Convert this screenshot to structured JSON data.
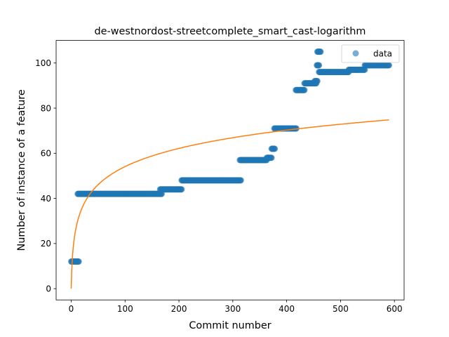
{
  "chart_data": {
    "type": "scatter",
    "title": "de-westnordost-streetcomplete_smart_cast-logarithm",
    "xlabel": "Commit number",
    "ylabel": "Number of instance of a feature",
    "xlim": [
      -28,
      618
    ],
    "ylim": [
      -5,
      110
    ],
    "xticks": [
      0,
      100,
      200,
      300,
      400,
      500,
      600
    ],
    "yticks": [
      0,
      20,
      40,
      60,
      80,
      100
    ],
    "legend": {
      "position": "top-right",
      "entries": [
        "data"
      ]
    },
    "colors": {
      "data": "#1f77b4",
      "fit": "#ff7f0e"
    },
    "grid": false,
    "series": [
      {
        "name": "data",
        "kind": "scatter-steps",
        "segments": [
          {
            "x0": 0,
            "x1": 14,
            "y": 12
          },
          {
            "x0": 12,
            "x1": 168,
            "y": 42
          },
          {
            "x0": 165,
            "x1": 205,
            "y": 44
          },
          {
            "x0": 205,
            "x1": 315,
            "y": 48
          },
          {
            "x0": 313,
            "x1": 363,
            "y": 57
          },
          {
            "x0": 363,
            "x1": 372,
            "y": 58
          },
          {
            "x0": 372,
            "x1": 378,
            "y": 62
          },
          {
            "x0": 377,
            "x1": 418,
            "y": 71
          },
          {
            "x0": 417,
            "x1": 433,
            "y": 88
          },
          {
            "x0": 433,
            "x1": 455,
            "y": 91
          },
          {
            "x0": 452,
            "x1": 457,
            "y": 92
          },
          {
            "x0": 456,
            "x1": 460,
            "y": 99
          },
          {
            "x0": 457,
            "x1": 463,
            "y": 105
          },
          {
            "x0": 460,
            "x1": 515,
            "y": 96
          },
          {
            "x0": 515,
            "x1": 545,
            "y": 97
          },
          {
            "x0": 545,
            "x1": 590,
            "y": 99
          }
        ]
      },
      {
        "name": "",
        "kind": "line",
        "model": "y = a * ln(x + 1)",
        "a": 11.72,
        "x_range": [
          0,
          590
        ]
      }
    ]
  }
}
